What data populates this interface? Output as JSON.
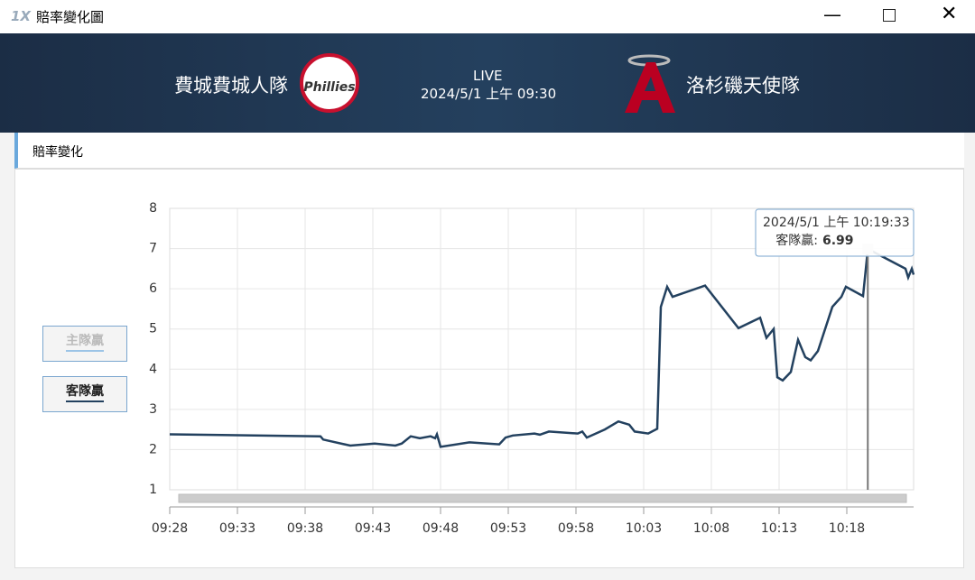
{
  "window": {
    "title": "賠率變化圖"
  },
  "match": {
    "home": "費城費城人隊",
    "away": "洛杉磯天使隊",
    "status": "LIVE",
    "time": "2024/5/1 上午 09:30"
  },
  "section": {
    "title": "賠率變化"
  },
  "chart_data": {
    "type": "line",
    "x": [
      "09:28:00",
      "09:39:08",
      "09:39:20",
      "09:41:20",
      "09:43:08",
      "09:44:40",
      "09:45:08",
      "09:45:48",
      "09:46:28",
      "09:47:16",
      "09:47:36",
      "09:47:44",
      "09:48:00",
      "09:50:08",
      "09:52:20",
      "09:52:48",
      "09:53:20",
      "09:54:56",
      "09:55:20",
      "09:56:00",
      "09:58:08",
      "09:58:28",
      "09:58:48",
      "09:59:28",
      "10:00:08",
      "10:01:08",
      "10:01:56",
      "10:02:20",
      "10:03:20",
      "10:04:00",
      "10:04:16",
      "10:04:44",
      "10:05:08",
      "10:07:32",
      "10:10:00",
      "10:11:36",
      "10:12:04",
      "10:12:36",
      "10:12:52",
      "10:13:16",
      "10:13:52",
      "10:14:24",
      "10:14:56",
      "10:15:20",
      "10:15:52",
      "10:16:56",
      "10:17:36",
      "10:17:56",
      "10:19:12",
      "10:19:33",
      "10:22:20",
      "10:22:32",
      "10:22:48",
      "10:22:56"
    ],
    "series": [
      {
        "name": "客隊贏",
        "color": "#23415f",
        "values": [
          2.38,
          2.33,
          2.25,
          2.1,
          2.15,
          2.1,
          2.15,
          2.33,
          2.28,
          2.33,
          2.28,
          2.38,
          2.07,
          2.18,
          2.13,
          2.3,
          2.35,
          2.4,
          2.37,
          2.45,
          2.4,
          2.45,
          2.3,
          2.4,
          2.5,
          2.7,
          2.62,
          2.45,
          2.4,
          2.52,
          5.55,
          6.05,
          5.8,
          6.08,
          5.02,
          5.28,
          4.78,
          5.0,
          3.8,
          3.72,
          3.93,
          4.73,
          4.3,
          4.22,
          4.45,
          5.55,
          5.8,
          6.05,
          5.82,
          6.99,
          6.5,
          6.28,
          6.5,
          6.35
        ]
      }
    ],
    "inactive_legend": [
      "主隊贏"
    ],
    "xlim": [
      "09:28:00",
      "10:22:56"
    ],
    "xticks": [
      "09:28",
      "09:33",
      "09:38",
      "09:43",
      "09:48",
      "09:53",
      "09:58",
      "10:03",
      "10:08",
      "10:13",
      "10:18"
    ],
    "ylim": [
      1,
      8
    ],
    "yticks": [
      1,
      2,
      3,
      4,
      5,
      6,
      7,
      8
    ],
    "grid": true,
    "tooltip": {
      "title": "2024/5/1 上午 10:19:33",
      "name": "客隊贏:"
    }
  }
}
